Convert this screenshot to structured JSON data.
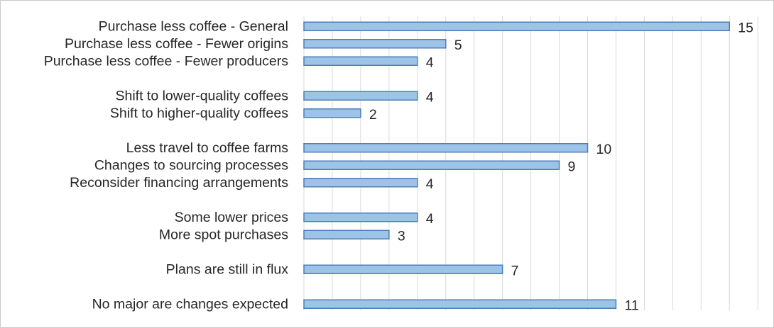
{
  "chart_data": {
    "type": "bar",
    "orientation": "horizontal",
    "title": "",
    "xlabel": "",
    "ylabel": "",
    "xlim": [
      0,
      16
    ],
    "grid": true,
    "legend": "none",
    "bar_color": "#9dc3e6",
    "bar_edge_color": "#4a7ebb",
    "categories": [
      "Purchase less coffee - General",
      "Purchase less coffee - Fewer origins",
      "Purchase less coffee - Fewer producers",
      "",
      "Shift to lower-quality coffees",
      "Shift to higher-quality coffees",
      "",
      "Less travel to coffee farms",
      "Changes to sourcing processes",
      "Reconsider financing arrangements",
      "",
      "Some lower prices",
      "More spot purchases",
      "",
      "Plans are still in flux",
      "",
      "No major are changes expected"
    ],
    "values": [
      15,
      5,
      4,
      null,
      4,
      2,
      null,
      10,
      9,
      4,
      null,
      4,
      3,
      null,
      7,
      null,
      11
    ]
  }
}
